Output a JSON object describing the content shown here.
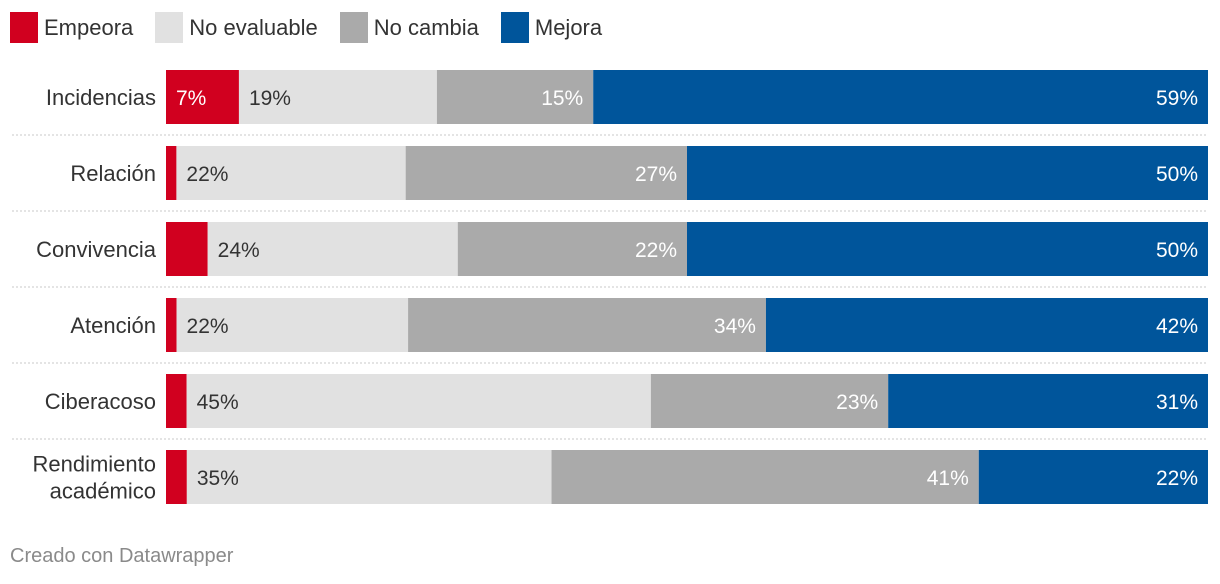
{
  "legend": [
    {
      "label": "Empeora",
      "color": "#d1001f"
    },
    {
      "label": "No evaluable",
      "color": "#e1e1e1"
    },
    {
      "label": "No cambia",
      "color": "#aaaaaa"
    },
    {
      "label": "Mejora",
      "color": "#00559b"
    }
  ],
  "chart_data": {
    "type": "bar",
    "orientation": "horizontal",
    "stacked": true,
    "stack_mode": "percent",
    "categories": [
      [
        "Incidencias"
      ],
      [
        "Relación"
      ],
      [
        "Convivencia"
      ],
      [
        "Atención"
      ],
      [
        "Ciberacoso"
      ],
      [
        "Rendimiento",
        "académico"
      ]
    ],
    "series": [
      {
        "name": "Empeora",
        "color": "#d1001f",
        "values": [
          7,
          1,
          4,
          1,
          2,
          2
        ],
        "labels": [
          "7%",
          "",
          "",
          "",
          "",
          ""
        ]
      },
      {
        "name": "No evaluable",
        "color": "#e1e1e1",
        "values": [
          19,
          22,
          24,
          22,
          45,
          35
        ],
        "labels": [
          "19%",
          "22%",
          "24%",
          "22%",
          "45%",
          "35%"
        ]
      },
      {
        "name": "No cambia",
        "color": "#aaaaaa",
        "values": [
          15,
          27,
          22,
          34,
          23,
          41
        ],
        "labels": [
          "15%",
          "27%",
          "22%",
          "34%",
          "23%",
          "41%"
        ]
      },
      {
        "name": "Mejora",
        "color": "#00559b",
        "values": [
          59,
          50,
          50,
          42,
          31,
          22
        ],
        "labels": [
          "59%",
          "50%",
          "50%",
          "42%",
          "31%",
          "22%"
        ]
      }
    ],
    "xlim": [
      0,
      100
    ],
    "grid": false,
    "legend_position": "top-left"
  },
  "footer": {
    "credit": "Creado con Datawrapper"
  }
}
